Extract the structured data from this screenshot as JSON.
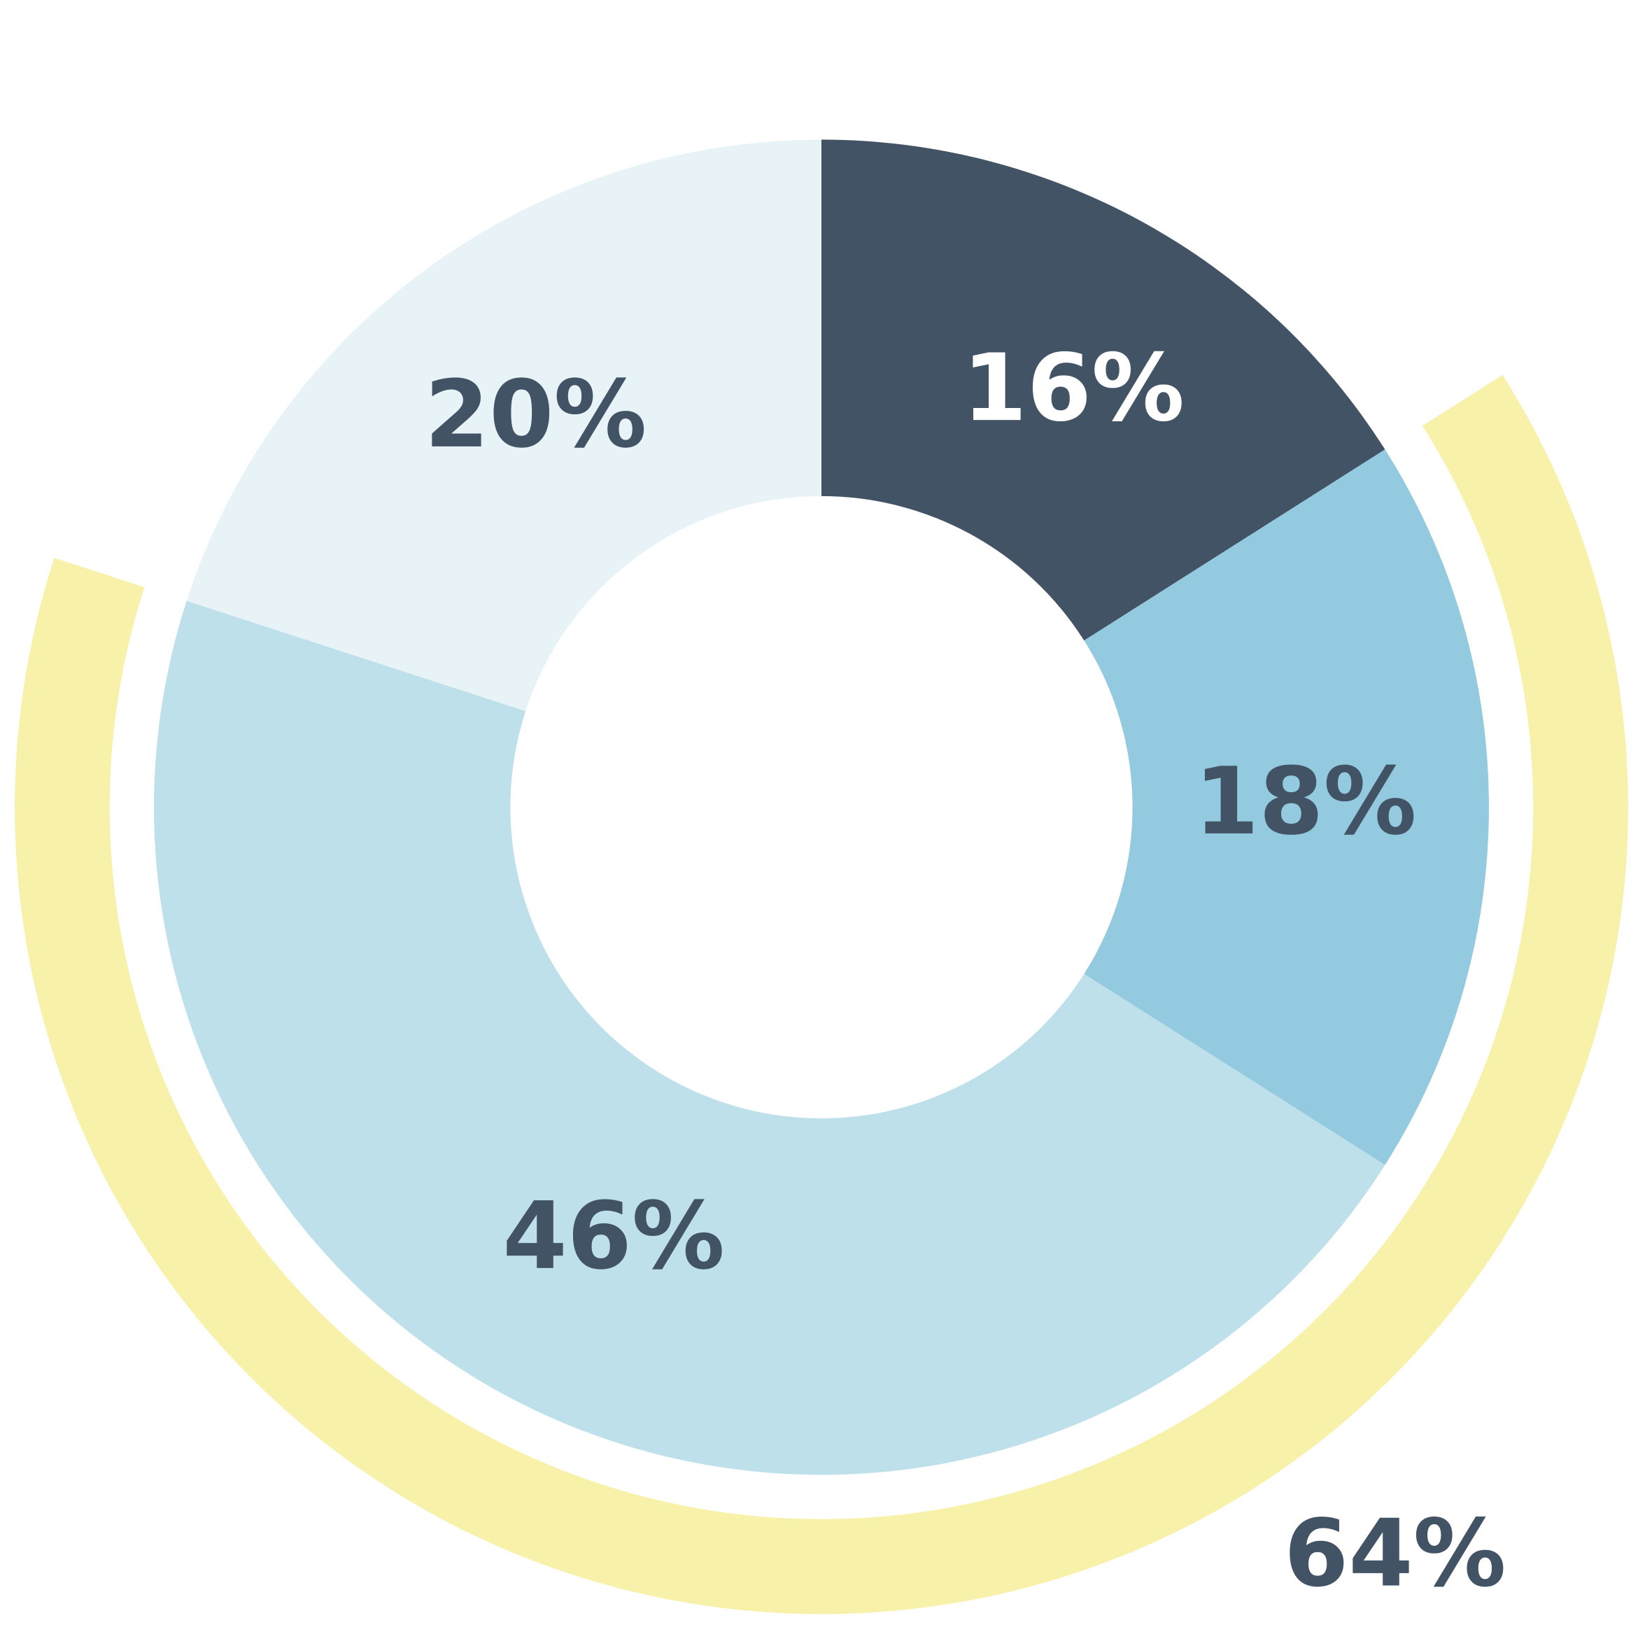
{
  "chart_data": {
    "type": "pie",
    "variant": "donut",
    "slices": [
      {
        "label": "16%",
        "value": 16,
        "color": "#435366",
        "label_color": "#ffffff"
      },
      {
        "label": "18%",
        "value": 18,
        "color": "#93cadf",
        "label_color": "#435366"
      },
      {
        "label": "46%",
        "value": 46,
        "color": "#bde0eb",
        "label_color": "#435366"
      },
      {
        "label": "20%",
        "value": 20,
        "color": "#e7f3f6",
        "label_color": "#435366"
      }
    ],
    "outer_arc": {
      "label": "64%",
      "value": 64,
      "covers": [
        "18%",
        "46%"
      ],
      "color": "#f7f1a9",
      "label_color": "#435366"
    },
    "start": "top",
    "direction": "clockwise"
  }
}
